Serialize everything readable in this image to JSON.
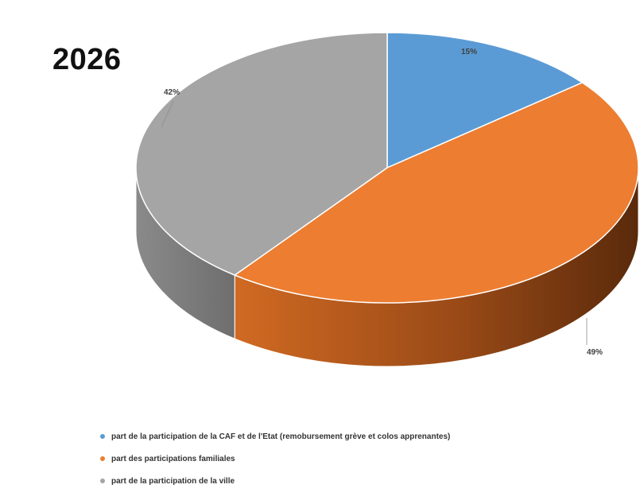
{
  "chart_data": {
    "type": "pie",
    "title": "2026",
    "categories": [
      "part de la participation de la CAF et de l'Etat (remobursement grève et colos apprenantes)",
      "part des participations familiales",
      "part de la participation de la ville"
    ],
    "values": [
      15,
      49,
      42
    ],
    "data_labels": [
      "15%",
      "49%",
      "42%"
    ],
    "colors": [
      "#5b9bd5",
      "#ed7d31",
      "#a5a5a5"
    ],
    "style": "3d",
    "legend_position": "bottom"
  }
}
